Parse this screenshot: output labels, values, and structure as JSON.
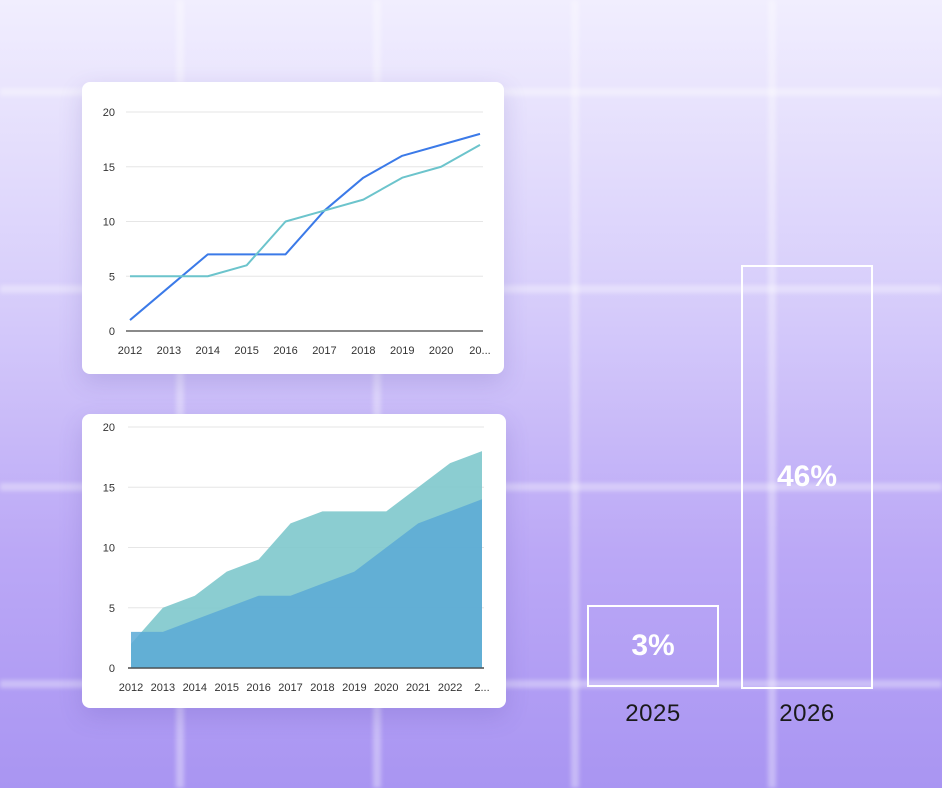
{
  "chart_data": [
    {
      "type": "line",
      "categories": [
        "2012",
        "2013",
        "2014",
        "2015",
        "2016",
        "2017",
        "2018",
        "2019",
        "2020",
        "20..."
      ],
      "ylim": [
        0,
        20
      ],
      "yticks": [
        0,
        5,
        10,
        15,
        20
      ],
      "grid": true,
      "series": [
        {
          "color": "#3b7ae8",
          "values": [
            1,
            4,
            7,
            7,
            7,
            11,
            14,
            16,
            17,
            18
          ]
        },
        {
          "color": "#6cc4cc",
          "values": [
            5,
            5,
            5,
            6,
            10,
            11,
            12,
            14,
            15,
            17
          ]
        }
      ]
    },
    {
      "type": "area",
      "categories": [
        "2012",
        "2013",
        "2014",
        "2015",
        "2016",
        "2017",
        "2018",
        "2019",
        "2020",
        "2021",
        "2022",
        "2..."
      ],
      "ylim": [
        0,
        20
      ],
      "yticks": [
        0,
        5,
        10,
        15,
        20
      ],
      "grid": true,
      "series": [
        {
          "color": "#7ec8cc",
          "values": [
            2,
            5,
            6,
            8,
            9,
            12,
            13,
            13,
            13,
            15,
            17,
            18
          ]
        },
        {
          "color": "#5aa9d6",
          "values": [
            3,
            3,
            4,
            5,
            6,
            6,
            7,
            8,
            10,
            12,
            13,
            14
          ]
        }
      ]
    },
    {
      "type": "bar",
      "categories": [
        "2025",
        "2026"
      ],
      "values": [
        3,
        46
      ],
      "labels": [
        "3%",
        "46%"
      ],
      "colors": [
        "#38a5b3",
        "#075598"
      ]
    }
  ]
}
